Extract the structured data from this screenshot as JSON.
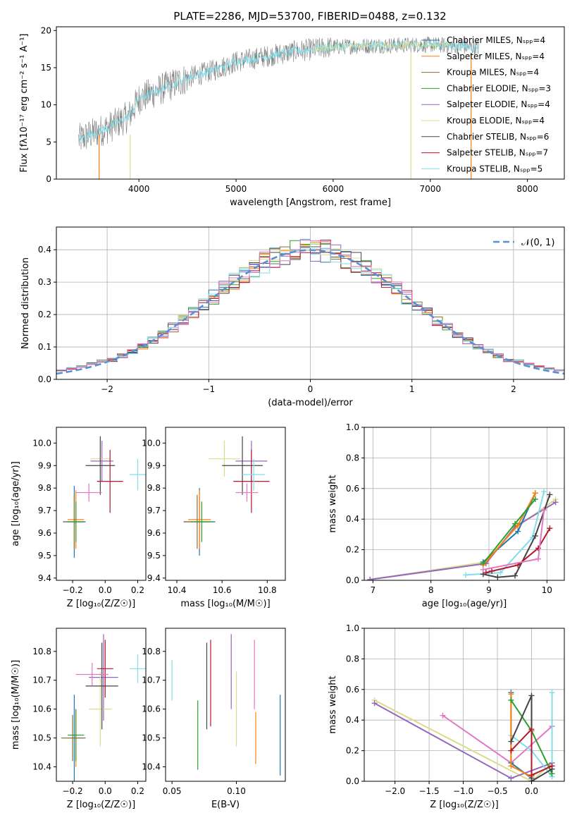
{
  "figure_title": "PLATE=2286, MJD=53700, FIBERID=0488, z=0.132",
  "colors": {
    "chabrier_miles": "#1f77b4",
    "salpeter_miles": "#ff7f0e",
    "kroupa_miles": "#8c6d31",
    "chabrier_elodie": "#2ca02c",
    "salpeter_elodie": "#9467bd",
    "kroupa_elodie": "#dbdb8d",
    "chabrier_stelib": "#444444",
    "salpeter_stelib": "#b2182b",
    "kroupa_stelib": "#80deea",
    "extra_pink": "#e377c2",
    "gauss": "#5b8fd6"
  },
  "chart_data": [
    {
      "id": "spectrum",
      "type": "line",
      "title": "PLATE=2286, MJD=53700, FIBERID=0488, z=0.132",
      "xlabel": "wavelength [Angstrom, rest frame]",
      "ylabel": "Flux [f_λ 10^-17 erg cm^-2 s^-1 A^-1]",
      "xlim": [
        3150,
        8380
      ],
      "ylim": [
        0,
        20.5
      ],
      "xticks": [
        "4000",
        "5000",
        "6000",
        "7000",
        "8000"
      ],
      "yticks": [
        "0",
        "5",
        "10",
        "15",
        "20"
      ],
      "legend_position": "upper right",
      "legend": [
        "Chabrier MILES, N_SSP=4",
        "Salpeter MILES, N_SSP=4",
        "Kroupa MILES, N_SSP=4",
        "Chabrier ELODIE, N_SSP=3",
        "Salpeter ELODIE, N_SSP=4",
        "Kroupa ELODIE, N_SSP=4",
        "Chabrier STELIB, N_SSP=6",
        "Salpeter STELIB, N_SSP=7",
        "Kroupa STELIB, N_SSP=5"
      ],
      "continuum": {
        "x": [
          3380,
          3500,
          3700,
          3900,
          4000,
          4300,
          4500,
          4800,
          5000,
          5300,
          5600,
          6000,
          6500,
          7000,
          7300,
          7500
        ],
        "y": [
          5.3,
          6.0,
          7.0,
          8.5,
          10.8,
          12.5,
          13.6,
          14.8,
          15.8,
          16.5,
          17.2,
          17.8,
          18.0,
          18.1,
          17.9,
          17.7
        ]
      }
    },
    {
      "id": "residuals",
      "type": "line",
      "xlabel": "(data-model)/error",
      "ylabel": "Normed distribution",
      "xlim": [
        -2.5,
        2.5
      ],
      "ylim": [
        0,
        0.47
      ],
      "xticks": [
        "−2",
        "−1",
        "0",
        "1",
        "2"
      ],
      "yticks": [
        "0.0",
        "0.1",
        "0.2",
        "0.3",
        "0.4"
      ],
      "grid": true,
      "legend_position": "upper right",
      "legend": [
        "𝒩(0, 1)"
      ],
      "bin_width": 0.1
    },
    {
      "id": "age_vs_Z",
      "type": "scatter",
      "xlabel": "Z [log₁₀(Z/Z☉)]",
      "ylabel": "age  [log₁₀(age/yr)]",
      "xlim": [
        -0.3,
        0.25
      ],
      "ylim": [
        9.39,
        10.07
      ],
      "xticks": [
        "−0.2",
        "0.0",
        "0.2"
      ],
      "yticks": [
        "9.4",
        "9.5",
        "9.6",
        "9.7",
        "9.8",
        "9.9",
        "10.0"
      ],
      "points": [
        {
          "x": -0.19,
          "y": 9.65,
          "xerr": 0.07,
          "yerr": 0.16,
          "color": "chabrier_miles"
        },
        {
          "x": -0.18,
          "y": 9.66,
          "xerr": 0.05,
          "yerr": 0.13,
          "color": "salpeter_miles"
        },
        {
          "x": -0.19,
          "y": 9.65,
          "xerr": 0.06,
          "yerr": 0.12,
          "color": "kroupa_miles"
        },
        {
          "x": -0.18,
          "y": 9.65,
          "xerr": 0.05,
          "yerr": 0.09,
          "color": "chabrier_elodie"
        },
        {
          "x": -0.02,
          "y": 9.92,
          "xerr": 0.07,
          "yerr": 0.09,
          "color": "salpeter_elodie"
        },
        {
          "x": -0.03,
          "y": 9.93,
          "xerr": 0.06,
          "yerr": 0.08,
          "color": "kroupa_elodie"
        },
        {
          "x": -0.03,
          "y": 9.9,
          "xerr": 0.09,
          "yerr": 0.13,
          "color": "chabrier_stelib"
        },
        {
          "x": 0.03,
          "y": 9.83,
          "xerr": 0.08,
          "yerr": 0.14,
          "color": "salpeter_stelib"
        },
        {
          "x": 0.2,
          "y": 9.86,
          "xerr": 0.05,
          "yerr": 0.07,
          "color": "kroupa_stelib"
        },
        {
          "x": -0.1,
          "y": 9.78,
          "xerr": 0.08,
          "yerr": 0.04,
          "color": "extra_pink"
        }
      ]
    },
    {
      "id": "age_vs_mass",
      "type": "scatter",
      "xlabel": "mass [log₁₀(M/M☉)]",
      "xlim": [
        10.35,
        10.88
      ],
      "ylim": [
        9.39,
        10.07
      ],
      "xticks": [
        "10.4",
        "10.6",
        "10.8"
      ],
      "yticks": [
        "9.4",
        "9.5",
        "9.6",
        "9.7",
        "9.8",
        "9.9",
        "10.0"
      ],
      "points": [
        {
          "x": 10.5,
          "y": 9.65,
          "xerr": 0.07,
          "yerr": 0.15,
          "color": "chabrier_miles"
        },
        {
          "x": 10.5,
          "y": 9.66,
          "xerr": 0.05,
          "yerr": 0.13,
          "color": "salpeter_miles"
        },
        {
          "x": 10.49,
          "y": 9.65,
          "xerr": 0.06,
          "yerr": 0.12,
          "color": "kroupa_miles"
        },
        {
          "x": 10.51,
          "y": 9.65,
          "xerr": 0.05,
          "yerr": 0.09,
          "color": "chabrier_elodie"
        },
        {
          "x": 10.73,
          "y": 9.92,
          "xerr": 0.07,
          "yerr": 0.09,
          "color": "salpeter_elodie"
        },
        {
          "x": 10.61,
          "y": 9.93,
          "xerr": 0.07,
          "yerr": 0.08,
          "color": "kroupa_elodie"
        },
        {
          "x": 10.69,
          "y": 9.9,
          "xerr": 0.09,
          "yerr": 0.13,
          "color": "chabrier_stelib"
        },
        {
          "x": 10.73,
          "y": 9.83,
          "xerr": 0.08,
          "yerr": 0.14,
          "color": "salpeter_stelib"
        },
        {
          "x": 10.74,
          "y": 9.86,
          "xerr": 0.05,
          "yerr": 0.07,
          "color": "kroupa_stelib"
        },
        {
          "x": 10.71,
          "y": 9.78,
          "xerr": 0.05,
          "yerr": 0.04,
          "color": "extra_pink"
        }
      ]
    },
    {
      "id": "weight_vs_age",
      "type": "line",
      "xlabel": "age  [log₁₀(age/yr)]",
      "ylabel": "mass weight",
      "xlim": [
        6.85,
        10.3
      ],
      "ylim": [
        0,
        1.0
      ],
      "xticks": [
        "7",
        "8",
        "9",
        "10"
      ],
      "yticks": [
        "0.0",
        "0.2",
        "0.4",
        "0.6",
        "0.8",
        "1.0"
      ],
      "grid": true,
      "series": [
        {
          "color": "kroupa_elodie",
          "x": [
            6.95,
            8.95,
            9.45,
            10.15
          ],
          "y": [
            0.005,
            0.12,
            0.34,
            0.53
          ]
        },
        {
          "color": "salpeter_elodie",
          "x": [
            6.95,
            8.95,
            9.45,
            10.15
          ],
          "y": [
            0.005,
            0.11,
            0.35,
            0.51
          ]
        },
        {
          "color": "kroupa_stelib",
          "x": [
            8.6,
            9.2,
            9.75,
            9.95
          ],
          "y": [
            0.035,
            0.05,
            0.28,
            0.58
          ]
        },
        {
          "color": "chabrier_miles",
          "x": [
            8.9,
            9.5,
            9.8
          ],
          "y": [
            0.12,
            0.32,
            0.57
          ]
        },
        {
          "color": "salpeter_miles",
          "x": [
            8.9,
            9.5,
            9.8
          ],
          "y": [
            0.1,
            0.36,
            0.57
          ]
        },
        {
          "color": "chabrier_elodie",
          "x": [
            8.9,
            9.45,
            9.8
          ],
          "y": [
            0.11,
            0.37,
            0.53
          ]
        },
        {
          "color": "chabrier_stelib",
          "x": [
            8.9,
            9.15,
            9.45,
            9.8,
            10.05
          ],
          "y": [
            0.04,
            0.02,
            0.03,
            0.29,
            0.56
          ]
        },
        {
          "color": "salpeter_stelib",
          "x": [
            8.95,
            9.05,
            9.5,
            9.85,
            10.05
          ],
          "y": [
            0.05,
            0.06,
            0.1,
            0.21,
            0.34
          ]
        },
        {
          "color": "extra_pink",
          "x": [
            8.9,
            9.85,
            9.95
          ],
          "y": [
            0.07,
            0.14,
            0.46
          ]
        }
      ]
    },
    {
      "id": "mass_vs_Z",
      "type": "scatter",
      "xlabel": "Z [log₁₀(Z/Z☉)]",
      "ylabel": "mass [log₁₀(M/M☉)]",
      "xlim": [
        -0.3,
        0.25
      ],
      "ylim": [
        10.35,
        10.88
      ],
      "xticks": [
        "−0.2",
        "0.0",
        "0.2"
      ],
      "yticks": [
        "10.4",
        "10.5",
        "10.6",
        "10.7",
        "10.8"
      ],
      "points": [
        {
          "x": -0.19,
          "y": 10.5,
          "xerr": 0.07,
          "yerr": 0.15,
          "color": "chabrier_miles"
        },
        {
          "x": -0.18,
          "y": 10.5,
          "xerr": 0.05,
          "yerr": 0.1,
          "color": "salpeter_miles"
        },
        {
          "x": -0.2,
          "y": 10.5,
          "xerr": 0.07,
          "yerr": 0.08,
          "color": "kroupa_miles"
        },
        {
          "x": -0.18,
          "y": 10.51,
          "xerr": 0.05,
          "yerr": 0.09,
          "color": "chabrier_elodie"
        },
        {
          "x": -0.01,
          "y": 10.71,
          "xerr": 0.09,
          "yerr": 0.15,
          "color": "salpeter_elodie"
        },
        {
          "x": -0.03,
          "y": 10.6,
          "xerr": 0.07,
          "yerr": 0.13,
          "color": "kroupa_elodie"
        },
        {
          "x": -0.02,
          "y": 10.68,
          "xerr": 0.1,
          "yerr": 0.15,
          "color": "chabrier_stelib"
        },
        {
          "x": 0.0,
          "y": 10.74,
          "xerr": 0.05,
          "yerr": 0.1,
          "color": "salpeter_stelib"
        },
        {
          "x": 0.2,
          "y": 10.74,
          "xerr": 0.05,
          "yerr": 0.05,
          "color": "kroupa_stelib"
        },
        {
          "x": -0.08,
          "y": 10.72,
          "xerr": 0.1,
          "yerr": 0.04,
          "color": "extra_pink"
        }
      ]
    },
    {
      "id": "mass_vs_EBV",
      "type": "scatter",
      "xlabel": "E(B-V)",
      "xlim": [
        0.045,
        0.138
      ],
      "ylim": [
        10.35,
        10.88
      ],
      "xticks": [
        "0.05",
        "0.10"
      ],
      "yticks": [
        "10.4",
        "10.5",
        "10.6",
        "10.7",
        "10.8"
      ],
      "points": [
        {
          "x": 0.05,
          "y": 10.7,
          "xerr": 0,
          "yerr": 0.07,
          "color": "kroupa_stelib"
        },
        {
          "x": 0.07,
          "y": 10.51,
          "xerr": 0,
          "yerr": 0.12,
          "color": "chabrier_elodie"
        },
        {
          "x": 0.077,
          "y": 10.68,
          "xerr": 0,
          "yerr": 0.15,
          "color": "chabrier_stelib"
        },
        {
          "x": 0.08,
          "y": 10.69,
          "xerr": 0,
          "yerr": 0.15,
          "color": "salpeter_stelib"
        },
        {
          "x": 0.096,
          "y": 10.73,
          "xerr": 0,
          "yerr": 0.13,
          "color": "salpeter_elodie"
        },
        {
          "x": 0.1,
          "y": 10.6,
          "xerr": 0,
          "yerr": 0.13,
          "color": "kroupa_elodie"
        },
        {
          "x": 0.114,
          "y": 10.72,
          "xerr": 0,
          "yerr": 0.12,
          "color": "extra_pink"
        },
        {
          "x": 0.115,
          "y": 10.5,
          "xerr": 0,
          "yerr": 0.09,
          "color": "salpeter_miles"
        },
        {
          "x": 0.134,
          "y": 10.51,
          "xerr": 0,
          "yerr": 0.14,
          "color": "chabrier_miles"
        }
      ]
    },
    {
      "id": "weight_vs_Z",
      "type": "line",
      "xlabel": "Z [log₁₀(Z/Z☉)]",
      "ylabel": "mass weight",
      "xlim": [
        -2.45,
        0.48
      ],
      "ylim": [
        0,
        1.0
      ],
      "xticks": [
        "−2.0",
        "−1.5",
        "−1.0",
        "−0.5",
        "0.0"
      ],
      "yticks": [
        "0.0",
        "0.2",
        "0.4",
        "0.6",
        "0.8",
        "1.0"
      ],
      "grid": true,
      "series": [
        {
          "color": "kroupa_elodie",
          "x": [
            -2.3,
            0.0,
            0.3
          ],
          "y": [
            0.53,
            0.0,
            0.12
          ]
        },
        {
          "color": "salpeter_elodie",
          "x": [
            -2.3,
            -0.3,
            0.3
          ],
          "y": [
            0.51,
            0.02,
            0.12
          ]
        },
        {
          "color": "extra_pink",
          "x": [
            -1.3,
            -0.3,
            0.3
          ],
          "y": [
            0.43,
            0.12,
            0.36
          ]
        },
        {
          "color": "kroupa_stelib",
          "x": [
            -0.3,
            0.0,
            0.3,
            0.3
          ],
          "y": [
            0.3,
            0.2,
            0.03,
            0.58
          ]
        },
        {
          "color": "chabrier_miles",
          "x": [
            -0.3,
            -0.3,
            0.0
          ],
          "y": [
            0.58,
            0.12,
            0.02
          ]
        },
        {
          "color": "salpeter_miles",
          "x": [
            -0.3,
            -0.3,
            0.0
          ],
          "y": [
            0.57,
            0.1,
            0.03
          ]
        },
        {
          "color": "chabrier_elodie",
          "x": [
            -0.3,
            0.0,
            0.3
          ],
          "y": [
            0.53,
            0.33,
            0.05
          ]
        },
        {
          "color": "chabrier_stelib",
          "x": [
            -0.3,
            0.0,
            0.0,
            0.3
          ],
          "y": [
            0.26,
            0.56,
            0.0,
            0.08
          ]
        },
        {
          "color": "salpeter_stelib",
          "x": [
            -0.3,
            0.0,
            0.0,
            0.3
          ],
          "y": [
            0.2,
            0.34,
            0.04,
            0.1
          ]
        }
      ]
    }
  ]
}
